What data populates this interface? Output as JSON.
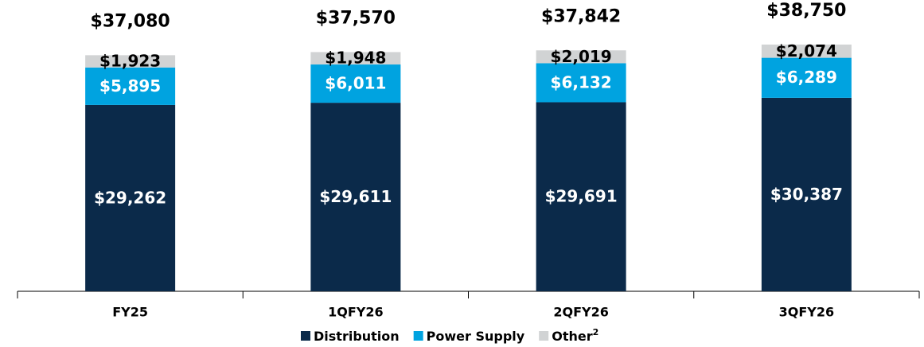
{
  "chart_data": {
    "type": "stacked-bar",
    "categories": [
      "FY25",
      "1QFY26",
      "2QFY26",
      "3QFY26"
    ],
    "series": [
      {
        "name": "Distribution",
        "color": "#0b2a4a",
        "values": [
          29262,
          29611,
          29691,
          30387
        ],
        "value_labels": [
          "$29,262",
          "$29,611",
          "$29,691",
          "$30,387"
        ],
        "label_color": "#ffffff"
      },
      {
        "name": "Power Supply",
        "color": "#00a3e0",
        "values": [
          5895,
          6011,
          6132,
          6289
        ],
        "value_labels": [
          "$5,895",
          "$6,011",
          "$6,132",
          "$6,289"
        ],
        "label_color": "#ffffff"
      },
      {
        "name": "Other",
        "name_sup": "2",
        "color": "#d1d3d4",
        "values": [
          1923,
          1948,
          2019,
          2074
        ],
        "value_labels": [
          "$1,923",
          "$1,948",
          "$2,019",
          "$2,074"
        ],
        "label_color": "#000000"
      }
    ],
    "totals": [
      37080,
      37570,
      37842,
      38750
    ],
    "total_labels": [
      "$37,080",
      "$37,570",
      "$37,842",
      "$38,750"
    ],
    "ylim": [
      0,
      40000
    ],
    "grid": false
  }
}
